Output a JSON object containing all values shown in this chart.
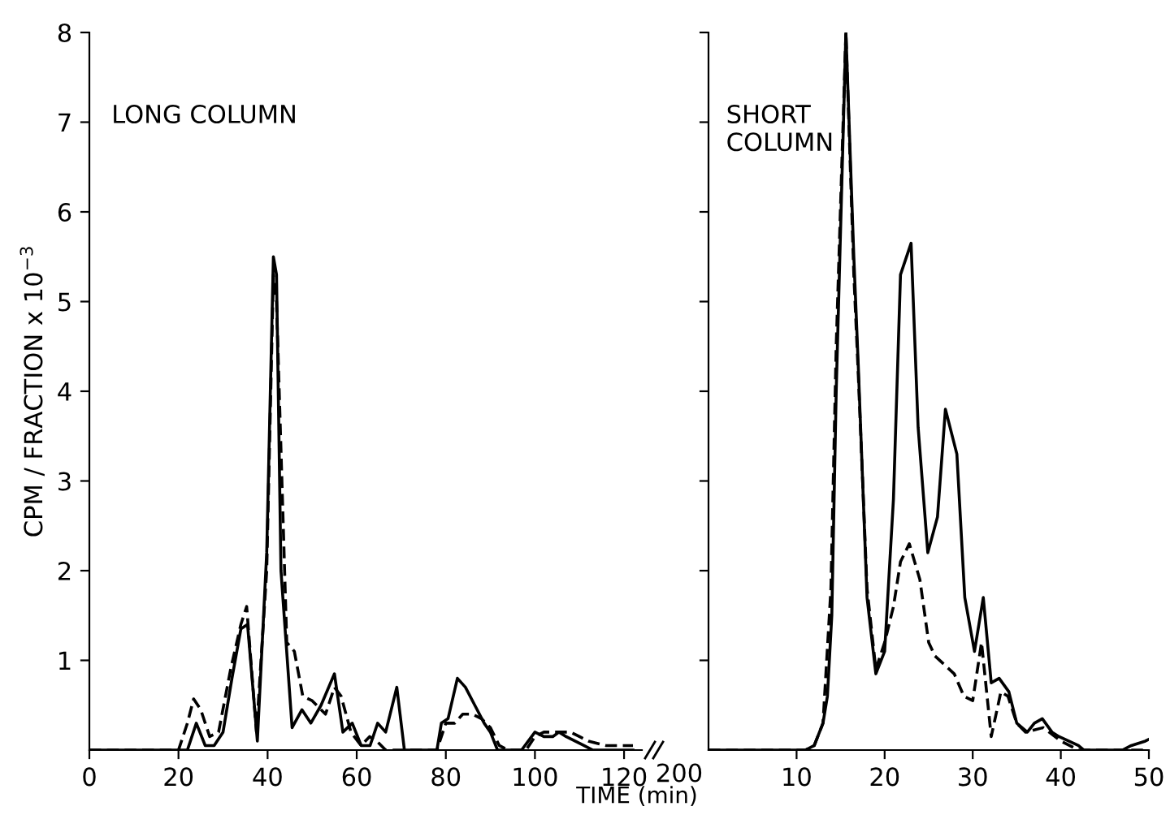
{
  "chart_data": [
    {
      "type": "line",
      "xlabel": "TIME (min)",
      "ylabel": "CPM / FRACTION x 10$^{−3}$",
      "annotations": [
        "LONG COLUMN",
        "200"
      ],
      "xlim": [
        0,
        124
      ],
      "xticks": [
        0,
        20,
        40,
        60,
        80,
        100,
        120
      ],
      "ylim": [
        0,
        8
      ],
      "yticks": [
        1,
        2,
        3,
        4,
        5,
        6,
        7,
        8
      ],
      "series": [
        {
          "color": "#000000",
          "line_style": "solid",
          "x": [
            0,
            20,
            22,
            24,
            26,
            28,
            30,
            32,
            34,
            35.5,
            37.7,
            39.8,
            41.3,
            42,
            43,
            45.5,
            47.7,
            49.7,
            52,
            55,
            56.9,
            59,
            61,
            63,
            64.7,
            66.5,
            69,
            70.7,
            74,
            78,
            79,
            80.5,
            82.6,
            84.4,
            86.5,
            88.6,
            90,
            91.6,
            94,
            97,
            100,
            102,
            104,
            105.4,
            107,
            109,
            111,
            113,
            116,
            120,
            122
          ],
          "values": [
            0,
            0,
            0,
            0.3,
            0.05,
            0.05,
            0.2,
            0.8,
            1.35,
            1.4,
            0.1,
            2.2,
            5.5,
            5.3,
            2.0,
            0.25,
            0.45,
            0.3,
            0.5,
            0.85,
            0.2,
            0.3,
            0.05,
            0.05,
            0.3,
            0.2,
            0.7,
            0,
            0,
            0,
            0.3,
            0.35,
            0.8,
            0.7,
            0.5,
            0.3,
            0.2,
            0,
            0,
            0,
            0.2,
            0.15,
            0.15,
            0.2,
            0.15,
            0.1,
            0.05,
            0,
            0,
            0,
            0
          ]
        },
        {
          "color": "#000000",
          "line_style": "dashed",
          "x": [
            0,
            20,
            22,
            23.4,
            25,
            27,
            29,
            31.7,
            34,
            35.3,
            37.5,
            39.8,
            41.3,
            42,
            44.3,
            46,
            47.9,
            50,
            53,
            55,
            56.5,
            58.7,
            61,
            62.9,
            64.5,
            66.5,
            70,
            78,
            80,
            82,
            83.8,
            86,
            88,
            90,
            92,
            94,
            98,
            100,
            102,
            104,
            106,
            108,
            110,
            112,
            116,
            120,
            122
          ],
          "values": [
            0,
            0,
            0.3,
            0.57,
            0.45,
            0.15,
            0.2,
            0.9,
            1.4,
            1.6,
            0.2,
            2.0,
            5.3,
            5.0,
            1.2,
            1.1,
            0.6,
            0.55,
            0.4,
            0.7,
            0.6,
            0.2,
            0.05,
            0.15,
            0.1,
            0,
            0,
            0,
            0.3,
            0.3,
            0.4,
            0.4,
            0.35,
            0.25,
            0.05,
            0,
            0,
            0.15,
            0.2,
            0.2,
            0.2,
            0.2,
            0.15,
            0.1,
            0.05,
            0.05,
            0.05
          ]
        }
      ]
    },
    {
      "type": "line",
      "annotations": [
        "SHORT\nCOLUMN"
      ],
      "xlim": [
        0,
        50
      ],
      "xticks": [
        10,
        20,
        30,
        40,
        50
      ],
      "ylim": [
        0,
        8
      ],
      "yticks": [
        {
          "value": 1,
          "label": null
        },
        {
          "value": 2,
          "label": null
        },
        {
          "value": 3,
          "label": null
        },
        {
          "value": 4,
          "label": null
        },
        {
          "value": 5,
          "label": null
        },
        {
          "value": 6,
          "label": null
        },
        {
          "value": 7,
          "label": null
        },
        {
          "value": 8,
          "label": null
        }
      ],
      "tick_labels": "x",
      "series": [
        {
          "color": "#000000",
          "line_style": "solid",
          "x": [
            0,
            11,
            12,
            13,
            13.5,
            14,
            14.5,
            15.6,
            16.5,
            17,
            18,
            19,
            20,
            21,
            21.8,
            23,
            23.8,
            24.9,
            26,
            26.9,
            28.2,
            29.1,
            30.2,
            31.2,
            32.1,
            33,
            34.1,
            35,
            36.2,
            37,
            37.9,
            39,
            39.8,
            42,
            42.6,
            47,
            48,
            49.6,
            50
          ],
          "values": [
            0,
            0,
            0.05,
            0.3,
            0.6,
            1.5,
            4.0,
            8.0,
            5.5,
            4.3,
            1.7,
            0.85,
            1.1,
            2.8,
            5.3,
            5.65,
            3.6,
            2.2,
            2.6,
            3.8,
            3.3,
            1.7,
            1.1,
            1.7,
            0.75,
            0.8,
            0.65,
            0.3,
            0.2,
            0.3,
            0.35,
            0.2,
            0.15,
            0.05,
            0,
            0,
            0.05,
            0.1,
            0.12
          ]
        },
        {
          "color": "#000000",
          "line_style": "dashed",
          "x": [
            0,
            11,
            12,
            13,
            13.9,
            14.5,
            15.6,
            16.5,
            17,
            18,
            19,
            20,
            21,
            21.8,
            22.8,
            24,
            25,
            25.7,
            27.9,
            29,
            30,
            31,
            32.1,
            33.2,
            34,
            35,
            36,
            38,
            40,
            42,
            50
          ],
          "values": [
            0,
            0,
            0.05,
            0.3,
            1.8,
            4.5,
            8.0,
            5.3,
            4.2,
            1.8,
            0.9,
            1.2,
            1.6,
            2.1,
            2.3,
            1.9,
            1.2,
            1.05,
            0.85,
            0.6,
            0.55,
            1.2,
            0.15,
            0.65,
            0.6,
            0.3,
            0.2,
            0.25,
            0.1,
            0,
            0
          ]
        }
      ]
    }
  ]
}
